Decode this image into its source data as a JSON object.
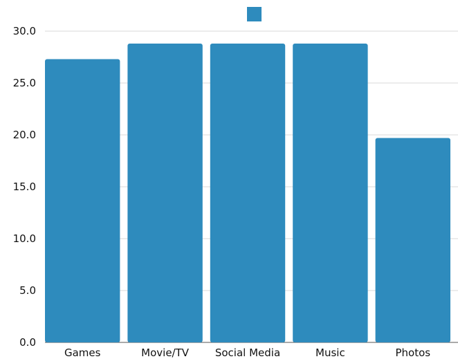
{
  "chart_data": {
    "type": "bar",
    "categories": [
      "Games",
      "Movie/TV",
      "Social Media",
      "Music",
      "Photos"
    ],
    "series": [
      {
        "values": [
          27.3,
          28.8,
          28.8,
          28.8,
          19.7
        ],
        "color": "#2e8bbd"
      }
    ],
    "ylim": [
      0,
      30
    ],
    "yticks": [
      "0.0",
      "5.0",
      "10.0",
      "15.0",
      "20.0",
      "25.0",
      "30.0"
    ],
    "grid": true,
    "legend": "top-center"
  }
}
